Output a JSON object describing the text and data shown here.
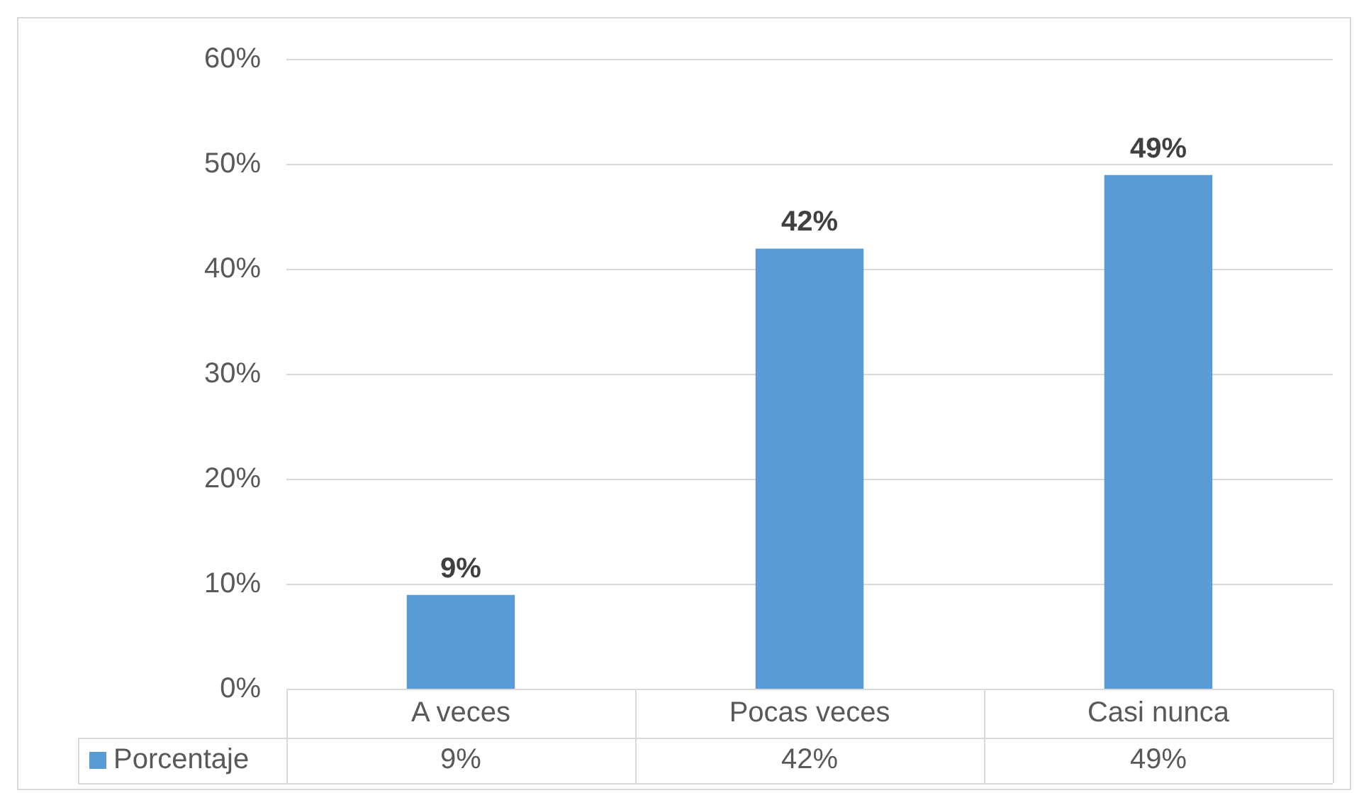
{
  "chart_data": {
    "type": "bar",
    "categories": [
      "A veces",
      "Pocas veces",
      "Casi nunca"
    ],
    "series": [
      {
        "name": "Porcentaje",
        "color": "#5b9bd5",
        "values": [
          9,
          42,
          49
        ],
        "value_labels": [
          "9%",
          "42%",
          "49%"
        ]
      }
    ],
    "ylim": [
      0,
      60
    ],
    "yticks": [
      {
        "value": 0,
        "label": "0%"
      },
      {
        "value": 10,
        "label": "10%"
      },
      {
        "value": 20,
        "label": "20%"
      },
      {
        "value": 30,
        "label": "30%"
      },
      {
        "value": 40,
        "label": "40%"
      },
      {
        "value": 50,
        "label": "50%"
      },
      {
        "value": 60,
        "label": "60%"
      }
    ],
    "grid": "y",
    "legend": "bottom"
  }
}
